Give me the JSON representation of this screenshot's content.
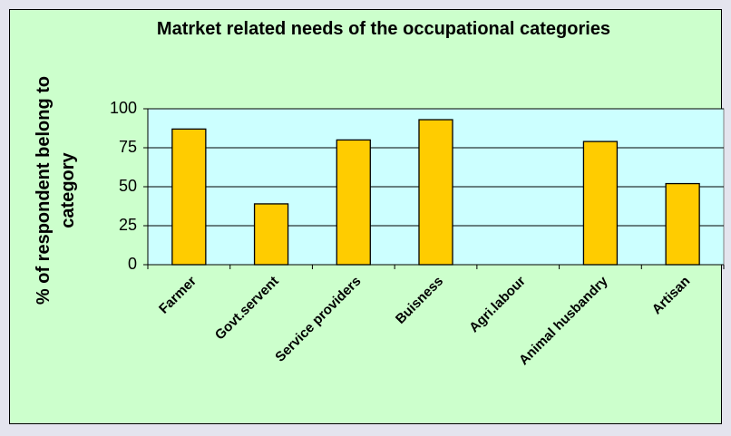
{
  "chart_data": {
    "type": "bar",
    "title": "Matrket related needs of the occupational categories",
    "y_label": "% of respondent belong to category",
    "categories": [
      "Farmer",
      "Govt.servent",
      "Service providers",
      "Buisness",
      "Agri.labour",
      "Animal husbandry",
      "Artisan"
    ],
    "values": [
      87,
      39,
      80,
      93,
      0,
      79,
      52
    ],
    "color": "#ffcc00",
    "ylim": [
      0,
      100
    ],
    "yticks": [
      0,
      25,
      50,
      75,
      100
    ],
    "grid": true
  }
}
